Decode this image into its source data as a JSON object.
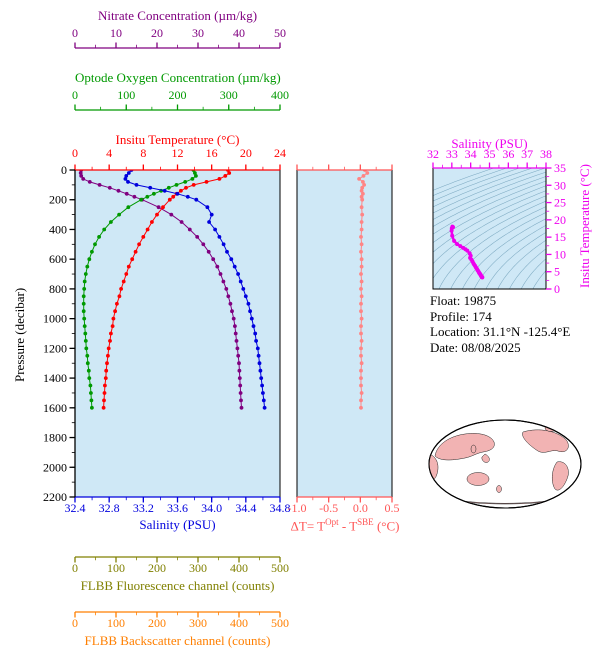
{
  "info": {
    "float": "Float:  19875",
    "profile": "Profile:  174",
    "location": "Location:  31.1°N -125.4°E",
    "date": "Date:  08/08/2025"
  },
  "map": {
    "land_color": "#f2b3b3",
    "ocean_color": "#ffffff"
  },
  "chart_data": {
    "type": "line",
    "title": "",
    "colors": {
      "plot_background": "#cfe8f6"
    },
    "axes": {
      "nitrate": {
        "title": "Nitrate Concentration (µm/kg)",
        "color": "#800080",
        "range": [
          0,
          50
        ],
        "ticks": [
          "0",
          "10",
          "20",
          "30",
          "40",
          "50"
        ],
        "minor_step": 5
      },
      "oxygen": {
        "title": "Optode Oxygen Concentration (µm/kg)",
        "color": "#009900",
        "range": [
          0,
          400
        ],
        "ticks": [
          "0",
          "100",
          "200",
          "300",
          "400"
        ],
        "minor_step": 50
      },
      "temperature": {
        "title": "Insitu Temperature (°C)",
        "color": "#ff0000",
        "range": [
          0,
          24
        ],
        "ticks": [
          "0",
          "4",
          "8",
          "12",
          "16",
          "20",
          "24"
        ],
        "minor_step": 2
      },
      "salinity": {
        "title": "Salinity (PSU)",
        "color": "#0000dd",
        "range": [
          32.4,
          34.8
        ],
        "ticks": [
          "32.4",
          "32.8",
          "33.2",
          "33.6",
          "34.0",
          "34.4",
          "34.8"
        ],
        "minor_step": 0.2
      },
      "pressure": {
        "title": "Pressure (decibar)",
        "color": "#000000",
        "range": [
          0,
          2200
        ],
        "ticks": [
          "0",
          "200",
          "400",
          "600",
          "800",
          "1000",
          "1200",
          "1400",
          "1600",
          "1800",
          "2000",
          "2200"
        ],
        "minor_step": 100
      },
      "delta_t": {
        "title_parts": {
          "p1": "ΔT= T",
          "sup1": "Opt",
          "p2": " - T",
          "sup2": "SBE",
          "p3": " (°C)"
        },
        "color": "#ff5555",
        "curve_color": "#ff8585",
        "range": [
          -1.0,
          0.5
        ],
        "ticks": [
          "-1.0",
          "-0.5",
          "0.0",
          "0.5"
        ],
        "minor_step": 0.25
      },
      "ts_salinity": {
        "title": "Salinity (PSU)",
        "color": "#ee00ee",
        "range": [
          32,
          38
        ],
        "ticks": [
          "32",
          "33",
          "34",
          "35",
          "36",
          "37",
          "38"
        ],
        "minor_step": 0.5
      },
      "ts_temperature": {
        "title": "Insitu Temperature (°C)",
        "color": "#ee00ee",
        "range": [
          0,
          35
        ],
        "ticks": [
          "0",
          "5",
          "10",
          "15",
          "20",
          "25",
          "30",
          "35"
        ],
        "minor_step": 2.5
      },
      "fluorescence": {
        "title": "FLBB Fluorescence channel (counts)",
        "color": "#808000",
        "range": [
          0,
          500
        ],
        "ticks": [
          "0",
          "100",
          "200",
          "300",
          "400",
          "500"
        ],
        "minor_step": 50
      },
      "backscatter": {
        "title": "FLBB Backscatter channel (counts)",
        "color": "#ff7f00",
        "range": [
          0,
          500
        ],
        "ticks": [
          "0",
          "100",
          "200",
          "300",
          "400",
          "500"
        ],
        "minor_step": 50
      }
    },
    "profiles": {
      "pressure_db": [
        0,
        20,
        40,
        60,
        80,
        100,
        120,
        140,
        160,
        180,
        200,
        250,
        300,
        350,
        400,
        450,
        500,
        550,
        600,
        650,
        700,
        750,
        800,
        850,
        900,
        950,
        1000,
        1050,
        1100,
        1150,
        1200,
        1250,
        1300,
        1350,
        1400,
        1450,
        1500,
        1550,
        1600
      ],
      "salinity_psu": [
        33.06,
        33.03,
        33.0,
        32.99,
        33.02,
        33.12,
        33.28,
        33.45,
        33.6,
        33.72,
        33.82,
        33.95,
        34.0,
        33.97,
        34.04,
        34.09,
        34.14,
        34.18,
        34.23,
        34.27,
        34.31,
        34.34,
        34.37,
        34.4,
        34.43,
        34.45,
        34.47,
        34.49,
        34.51,
        34.52,
        34.54,
        34.55,
        34.56,
        34.57,
        34.58,
        34.59,
        34.6,
        34.61,
        34.62
      ],
      "temperature_c": [
        17.9,
        18.05,
        17.6,
        16.9,
        15.4,
        13.9,
        13.0,
        12.4,
        11.9,
        11.5,
        11.1,
        10.3,
        9.6,
        9.0,
        8.5,
        8.0,
        7.5,
        7.1,
        6.7,
        6.3,
        6.0,
        5.7,
        5.4,
        5.2,
        4.9,
        4.7,
        4.5,
        4.4,
        4.2,
        4.1,
        3.95,
        3.85,
        3.75,
        3.65,
        3.6,
        3.5,
        3.45,
        3.4,
        3.35
      ],
      "oxygen_umkg": [
        231,
        234,
        236,
        229,
        215,
        198,
        183,
        168,
        154,
        141,
        129,
        104,
        86,
        70,
        57,
        47,
        39,
        33,
        28,
        24,
        21,
        19,
        18,
        17,
        17,
        17,
        18,
        19,
        20,
        21,
        22,
        24,
        25,
        27,
        28,
        30,
        31,
        32,
        33
      ],
      "nitrate_umkg": [
        1.5,
        1.4,
        1.5,
        2.0,
        3.6,
        6.0,
        8.5,
        10.6,
        12.6,
        14.5,
        16.4,
        20.4,
        23.5,
        26.0,
        28.0,
        29.8,
        31.3,
        32.6,
        33.7,
        34.7,
        35.5,
        36.2,
        36.9,
        37.4,
        37.9,
        38.3,
        38.7,
        39.0,
        39.2,
        39.4,
        39.6,
        39.8,
        40.0,
        40.1,
        40.2,
        40.3,
        40.4,
        40.5,
        40.6
      ],
      "delta_t_c": [
        0.07,
        0.11,
        0.05,
        -0.02,
        0.04,
        0.06,
        0.03,
        0.02,
        0.04,
        0.02,
        0.03,
        0.02,
        0.03,
        0.02,
        0.02,
        0.01,
        0.02,
        0.01,
        0.02,
        0.02,
        0.01,
        0.02,
        0.01,
        0.02,
        0.01,
        0.01,
        0.02,
        0.01,
        0.01,
        0.02,
        0.01,
        0.01,
        0.02,
        0.01,
        0.01,
        0.01,
        0.02,
        0.01,
        0.01
      ]
    },
    "ts_diagram": {
      "curve": "pairs of (salinity_psu, temperature_c) from profiles",
      "curve_color": "#ee00ee",
      "contour_color": "#6f9fb8",
      "sigma_theta_contours": [
        20,
        20.5,
        21,
        21.5,
        22,
        22.5,
        23,
        23.5,
        24,
        24.5,
        25,
        25.5,
        26,
        26.5,
        27,
        27.5,
        28,
        28.5,
        29,
        29.5,
        30
      ]
    }
  }
}
